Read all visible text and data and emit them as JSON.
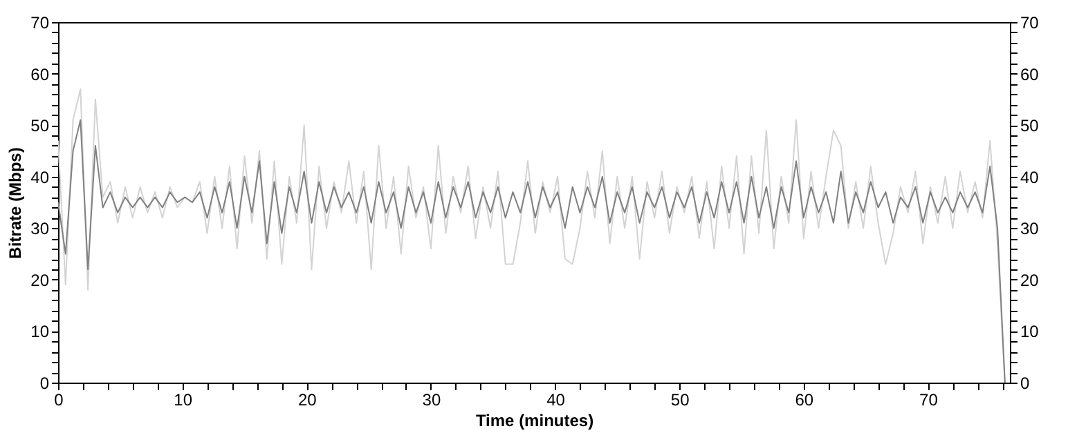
{
  "chart_data": {
    "type": "line",
    "xlabel": "Time (minutes)",
    "ylabel": "Bitrate (Mbps)",
    "x": [
      0,
      0.6,
      1.2,
      1.8,
      2.4,
      3.0,
      3.6,
      4.2,
      4.8,
      5.4,
      6.0,
      6.6,
      7.2,
      7.8,
      8.4,
      9.0,
      9.6,
      10.2,
      10.8,
      11.4,
      12.0,
      12.6,
      13.2,
      13.8,
      14.4,
      15.0,
      15.6,
      16.2,
      16.8,
      17.4,
      18.0,
      18.6,
      19.2,
      19.8,
      20.4,
      21.0,
      21.6,
      22.2,
      22.8,
      23.4,
      24.0,
      24.6,
      25.2,
      25.8,
      26.4,
      27.0,
      27.6,
      28.2,
      28.8,
      29.4,
      30.0,
      30.6,
      31.2,
      31.8,
      32.4,
      33.0,
      33.6,
      34.2,
      34.8,
      35.4,
      36.0,
      36.6,
      37.2,
      37.8,
      38.4,
      39.0,
      39.6,
      40.2,
      40.8,
      41.4,
      42.0,
      42.6,
      43.2,
      43.8,
      44.4,
      45.0,
      45.6,
      46.2,
      46.8,
      47.4,
      48.0,
      48.6,
      49.2,
      49.8,
      50.4,
      51.0,
      51.6,
      52.2,
      52.8,
      53.4,
      54.0,
      54.6,
      55.2,
      55.8,
      56.4,
      57.0,
      57.6,
      58.2,
      58.8,
      59.4,
      60.0,
      60.6,
      61.2,
      61.8,
      62.4,
      63.0,
      63.6,
      64.2,
      64.8,
      65.4,
      66.0,
      66.6,
      67.2,
      67.8,
      68.4,
      69.0,
      69.6,
      70.2,
      70.8,
      71.4,
      72.0,
      72.6,
      73.2,
      73.8,
      74.4,
      75.0,
      75.6,
      76.2
    ],
    "series": [
      {
        "color": "#d3d3d3",
        "values": [
          47,
          19,
          51,
          57,
          18,
          55,
          36,
          39,
          31,
          38,
          32,
          38,
          33,
          37,
          32,
          38,
          34,
          36,
          35,
          39,
          29,
          40,
          30,
          42,
          26,
          44,
          31,
          45,
          24,
          43,
          23,
          40,
          31,
          50,
          22,
          42,
          30,
          39,
          33,
          43,
          31,
          41,
          22,
          46,
          30,
          40,
          25,
          42,
          32,
          38,
          26,
          46,
          29,
          40,
          33,
          42,
          28,
          38,
          30,
          41,
          23,
          23,
          31,
          43,
          29,
          39,
          33,
          40,
          24,
          23,
          30,
          41,
          32,
          45,
          27,
          40,
          30,
          40,
          24,
          39,
          32,
          41,
          29,
          38,
          33,
          40,
          28,
          39,
          26,
          42,
          30,
          44,
          25,
          44,
          29,
          49,
          26,
          40,
          31,
          51,
          28,
          41,
          30,
          40,
          49,
          46,
          30,
          39,
          30,
          42,
          31,
          23,
          29,
          38,
          33,
          41,
          27,
          38,
          31,
          40,
          30,
          41,
          33,
          39,
          32,
          47,
          27,
          0
        ]
      },
      {
        "color": "#808080",
        "values": [
          35,
          25,
          45,
          51,
          22,
          46,
          34,
          37,
          33,
          36,
          34,
          36,
          34,
          36,
          34,
          37,
          35,
          36,
          35,
          37,
          32,
          38,
          33,
          39,
          30,
          40,
          33,
          43,
          27,
          39,
          29,
          38,
          33,
          41,
          31,
          39,
          33,
          38,
          34,
          37,
          33,
          38,
          31,
          39,
          33,
          37,
          30,
          38,
          33,
          37,
          31,
          39,
          32,
          38,
          34,
          39,
          32,
          37,
          33,
          38,
          32,
          37,
          33,
          39,
          32,
          38,
          34,
          37,
          30,
          38,
          33,
          38,
          34,
          40,
          31,
          37,
          33,
          38,
          31,
          37,
          34,
          38,
          32,
          37,
          34,
          38,
          31,
          37,
          32,
          39,
          33,
          39,
          31,
          40,
          32,
          38,
          30,
          38,
          33,
          43,
          32,
          38,
          33,
          37,
          31,
          41,
          31,
          37,
          33,
          39,
          34,
          37,
          31,
          36,
          34,
          38,
          31,
          37,
          33,
          36,
          33,
          37,
          34,
          37,
          33,
          42,
          30,
          0
        ]
      }
    ],
    "xlim": [
      0,
      76.6
    ],
    "ylim": [
      0,
      70
    ],
    "y2lim": [
      0,
      70
    ],
    "xticks": [
      0,
      {
        "value": 2,
        "label": null
      },
      {
        "value": 4,
        "label": null
      },
      {
        "value": 6,
        "label": null
      },
      {
        "value": 8,
        "label": null
      },
      10,
      {
        "value": 12,
        "label": null
      },
      {
        "value": 14,
        "label": null
      },
      {
        "value": 16,
        "label": null
      },
      {
        "value": 18,
        "label": null
      },
      20,
      {
        "value": 22,
        "label": null
      },
      {
        "value": 24,
        "label": null
      },
      {
        "value": 26,
        "label": null
      },
      {
        "value": 28,
        "label": null
      },
      30,
      {
        "value": 32,
        "label": null
      },
      {
        "value": 34,
        "label": null
      },
      {
        "value": 36,
        "label": null
      },
      {
        "value": 38,
        "label": null
      },
      40,
      {
        "value": 42,
        "label": null
      },
      {
        "value": 44,
        "label": null
      },
      {
        "value": 46,
        "label": null
      },
      {
        "value": 48,
        "label": null
      },
      50,
      {
        "value": 52,
        "label": null
      },
      {
        "value": 54,
        "label": null
      },
      {
        "value": 56,
        "label": null
      },
      {
        "value": 58,
        "label": null
      },
      60,
      {
        "value": 62,
        "label": null
      },
      {
        "value": 64,
        "label": null
      },
      {
        "value": 66,
        "label": null
      },
      {
        "value": 68,
        "label": null
      },
      70,
      {
        "value": 72,
        "label": null
      },
      {
        "value": 74,
        "label": null
      },
      {
        "value": 76,
        "label": null
      }
    ],
    "yticks": [
      0,
      {
        "value": 2,
        "label": null
      },
      {
        "value": 4,
        "label": null
      },
      {
        "value": 6,
        "label": null
      },
      {
        "value": 8,
        "label": null
      },
      10,
      {
        "value": 12,
        "label": null
      },
      {
        "value": 14,
        "label": null
      },
      {
        "value": 16,
        "label": null
      },
      {
        "value": 18,
        "label": null
      },
      20,
      {
        "value": 22,
        "label": null
      },
      {
        "value": 24,
        "label": null
      },
      {
        "value": 26,
        "label": null
      },
      {
        "value": 28,
        "label": null
      },
      30,
      {
        "value": 32,
        "label": null
      },
      {
        "value": 34,
        "label": null
      },
      {
        "value": 36,
        "label": null
      },
      {
        "value": 38,
        "label": null
      },
      40,
      {
        "value": 42,
        "label": null
      },
      {
        "value": 44,
        "label": null
      },
      {
        "value": 46,
        "label": null
      },
      {
        "value": 48,
        "label": null
      },
      50,
      {
        "value": 52,
        "label": null
      },
      {
        "value": 54,
        "label": null
      },
      {
        "value": 56,
        "label": null
      },
      {
        "value": 58,
        "label": null
      },
      60,
      {
        "value": 62,
        "label": null
      },
      {
        "value": 64,
        "label": null
      },
      {
        "value": 66,
        "label": null
      },
      {
        "value": 68,
        "label": null
      },
      70
    ],
    "y2ticks": [
      0,
      {
        "value": 2,
        "label": null
      },
      {
        "value": 4,
        "label": null
      },
      {
        "value": 6,
        "label": null
      },
      {
        "value": 8,
        "label": null
      },
      10,
      {
        "value": 12,
        "label": null
      },
      {
        "value": 14,
        "label": null
      },
      {
        "value": 16,
        "label": null
      },
      {
        "value": 18,
        "label": null
      },
      20,
      {
        "value": 22,
        "label": null
      },
      {
        "value": 24,
        "label": null
      },
      {
        "value": 26,
        "label": null
      },
      {
        "value": 28,
        "label": null
      },
      30,
      {
        "value": 32,
        "label": null
      },
      {
        "value": 34,
        "label": null
      },
      {
        "value": 36,
        "label": null
      },
      {
        "value": 38,
        "label": null
      },
      40,
      {
        "value": 42,
        "label": null
      },
      {
        "value": 44,
        "label": null
      },
      {
        "value": 46,
        "label": null
      },
      {
        "value": 48,
        "label": null
      },
      50,
      {
        "value": 52,
        "label": null
      },
      {
        "value": 54,
        "label": null
      },
      {
        "value": 56,
        "label": null
      },
      {
        "value": 58,
        "label": null
      },
      60,
      {
        "value": 62,
        "label": null
      },
      {
        "value": 64,
        "label": null
      },
      {
        "value": 66,
        "label": null
      },
      {
        "value": 68,
        "label": null
      },
      70
    ],
    "grid": false
  }
}
